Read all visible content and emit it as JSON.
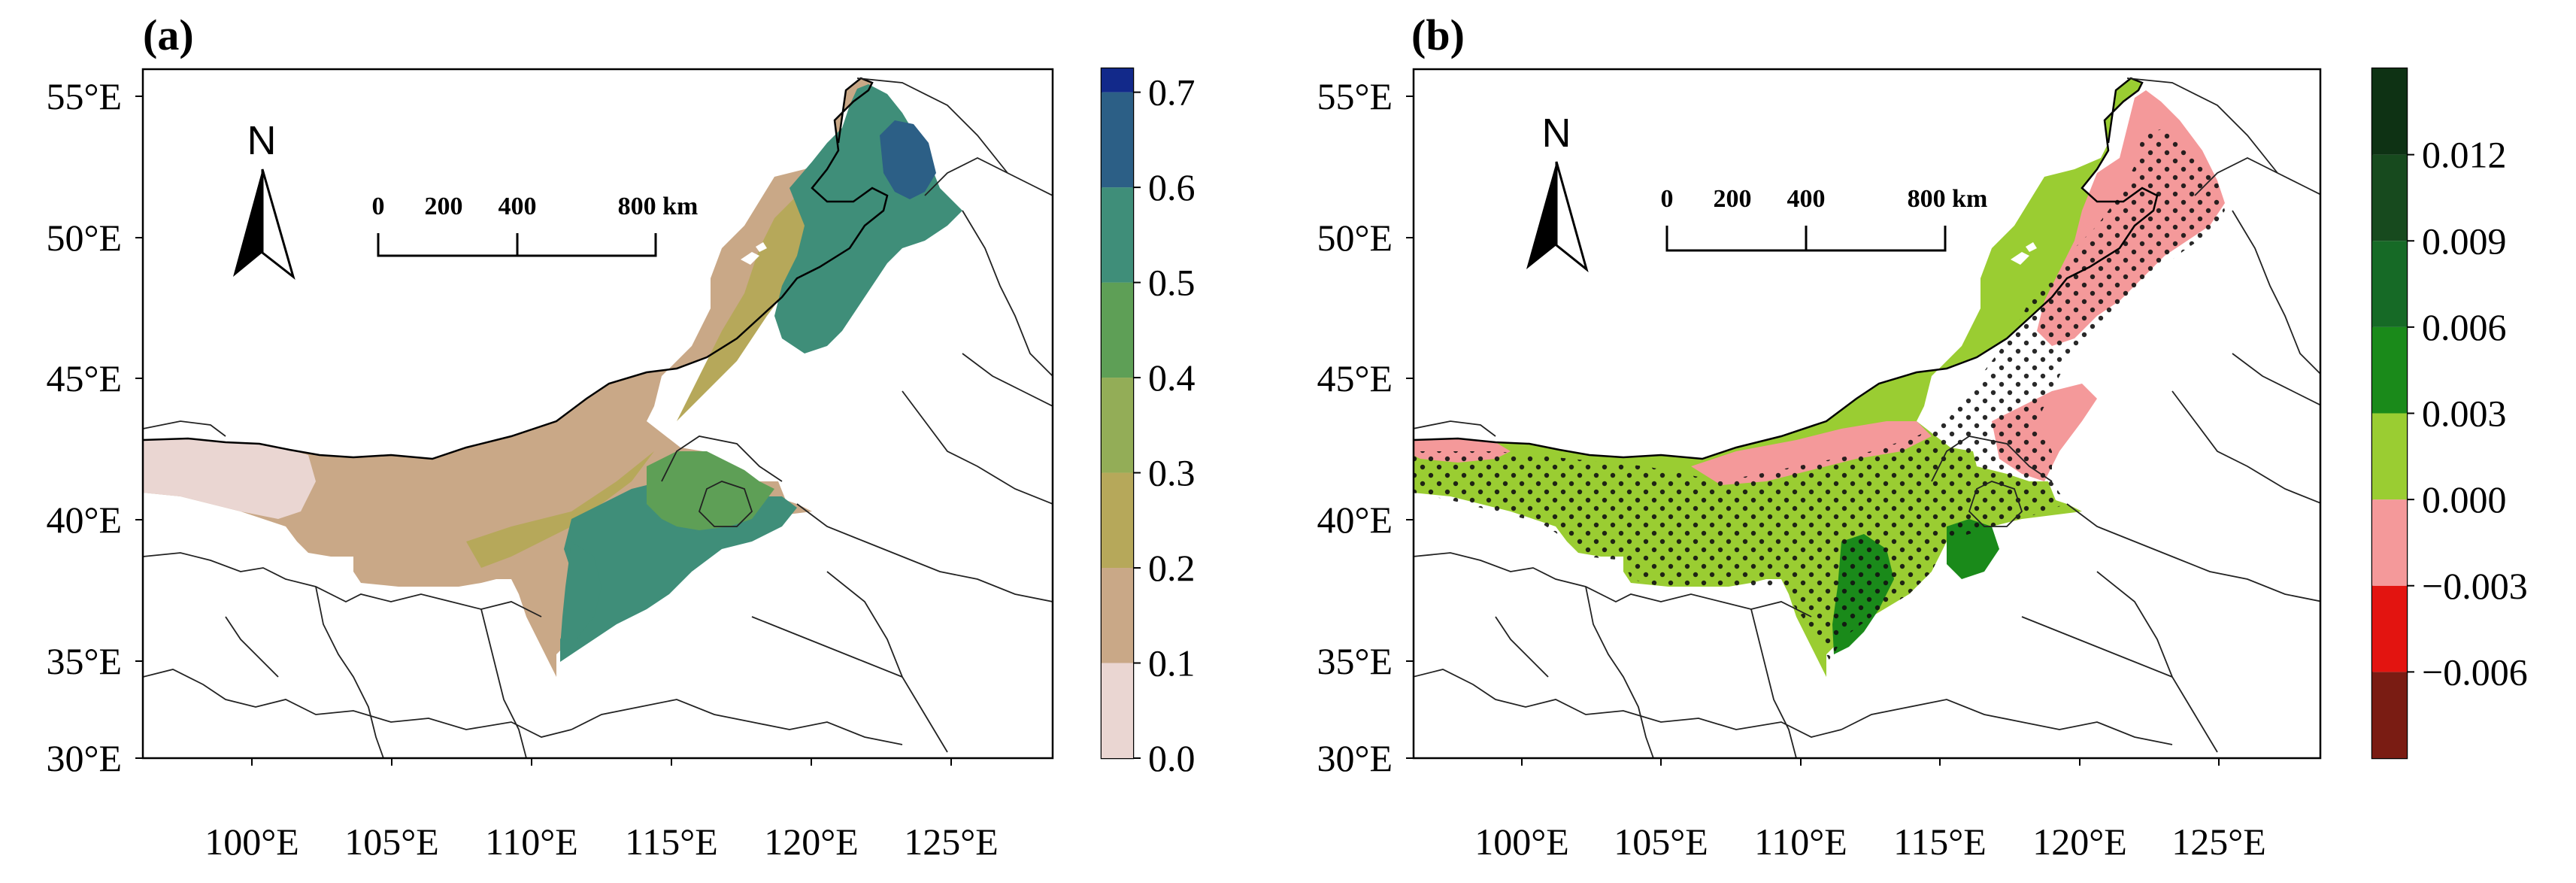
{
  "figure": {
    "background": "#ffffff",
    "border_color": "#000000",
    "admin_line_color": "#222222"
  },
  "panels": [
    {
      "label": "(a)",
      "xticks": [
        "100°E",
        "105°E",
        "110°E",
        "115°E",
        "120°E",
        "125°E"
      ],
      "yticks": [
        "55°E",
        "50°E",
        "45°E",
        "40°E",
        "35°E",
        "30°E"
      ],
      "north_label": "N",
      "scale_bar": {
        "labels": [
          "0",
          "200",
          "400",
          "800 km"
        ]
      },
      "colorbar": {
        "labels": [
          "0.0",
          "0.1",
          "0.2",
          "0.3",
          "0.4",
          "0.5",
          "0.6",
          "0.7"
        ],
        "colors": [
          "#ead6d2",
          "#c9a887",
          "#b6a85a",
          "#93ad57",
          "#5e9f56",
          "#3f8e79",
          "#2c5f86",
          "#12298a"
        ]
      },
      "fill": {
        "base": "#c9a887",
        "west": "#ead6d2",
        "mid": "#b6a85a",
        "east": "#5e9f56",
        "north": "#3f8e79",
        "ne": "#2c5f86",
        "south": "#3f8e79"
      }
    },
    {
      "label": "(b)",
      "xticks": [
        "100°E",
        "105°E",
        "110°E",
        "115°E",
        "120°E",
        "125°E"
      ],
      "yticks": [
        "55°E",
        "50°E",
        "45°E",
        "40°E",
        "35°E",
        "30°E"
      ],
      "north_label": "N",
      "scale_bar": {
        "labels": [
          "0",
          "200",
          "400",
          "800 km"
        ]
      },
      "colorbar": {
        "labels": [
          "−0.006",
          "−0.003",
          "0.000",
          "0.003",
          "0.006",
          "0.009",
          "0.012"
        ],
        "colors": [
          "#7a1c13",
          "#e31410",
          "#f4999a",
          "#9acd32",
          "#1a8a1a",
          "#166a26",
          "#174a1e",
          "#0e3214"
        ]
      },
      "fill": {
        "base": "#9acd32",
        "pink": "#f4999a",
        "dark": "#1a8a1a"
      }
    }
  ]
}
